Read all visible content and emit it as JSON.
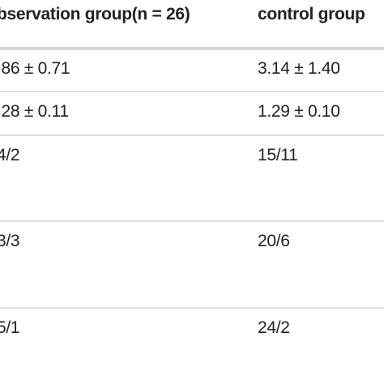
{
  "table": {
    "header": [
      "bservation group(n = 26)",
      "control group"
    ],
    "rows": [
      [
        ".86 ± 0.71",
        "3.14 ± 1.40"
      ],
      [
        ".28 ± 0.11",
        "1.29 ± 0.10"
      ],
      [
        "4/2",
        "15/11"
      ],
      [
        "3/3",
        "20/6"
      ],
      [
        "5/1",
        "24/2"
      ]
    ]
  }
}
